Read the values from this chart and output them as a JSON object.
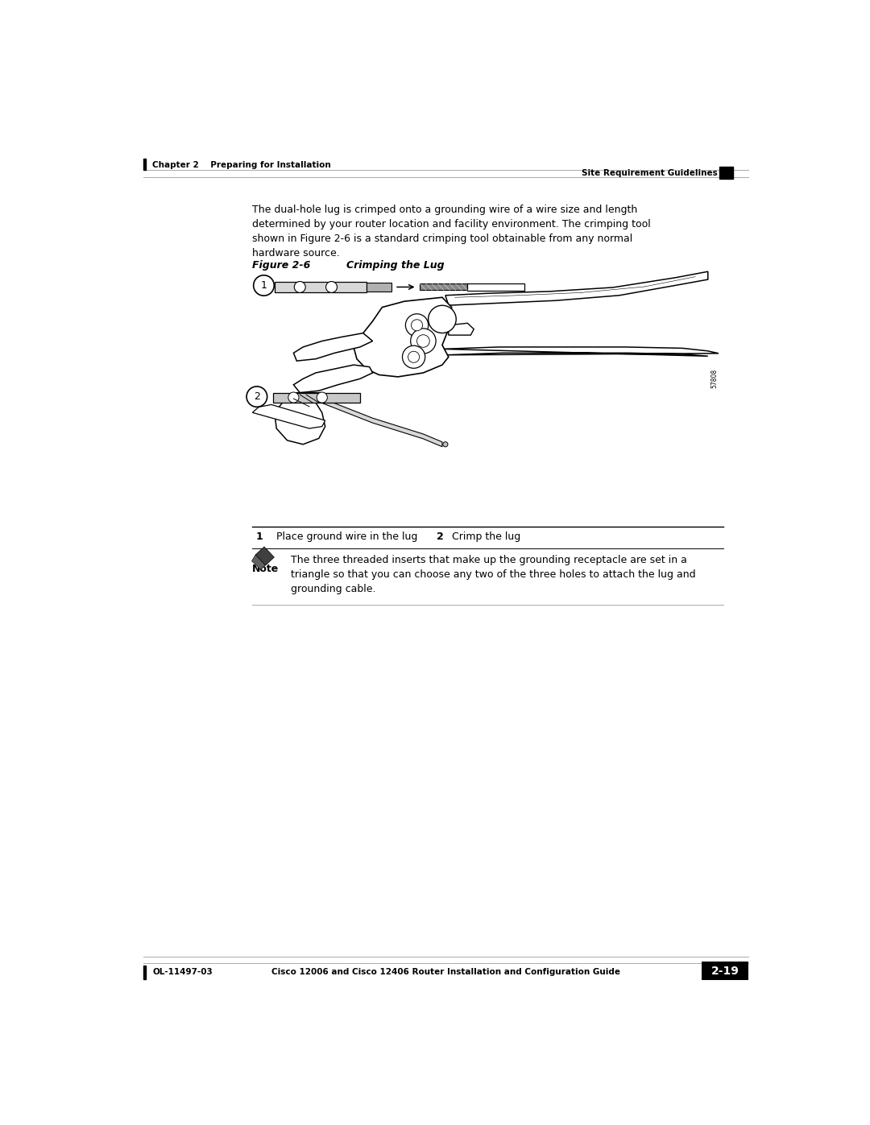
{
  "page_width": 10.8,
  "page_height": 13.97,
  "bg_color": "#ffffff",
  "header_left": "Chapter 2    Preparing for Installation",
  "header_right": "Site Requirement Guidelines",
  "footer_left": "OL-11497-03",
  "footer_center": "Cisco 12006 and Cisco 12406 Router Installation and Configuration Guide",
  "footer_page": "2-19",
  "body_text": "The dual-hole lug is crimped onto a grounding wire of a wire size and length\ndetermined by your router location and facility environment. The crimping tool\nshown in Figure 2-6 is a standard crimping tool obtainable from any normal\nhardware source.",
  "figure_label": "Figure 2-6",
  "figure_title": "     Crimping the Lug",
  "table_row1_num": "1",
  "table_row1_text": "Place ground wire in the lug",
  "table_row1_num2": "2",
  "table_row1_text2": "Crimp the lug",
  "note_label": "Note",
  "note_text": "The three threaded inserts that make up the grounding receptacle are set in a\ntriangle so that you can choose any two of the three holes to attach the lug and\ngrounding cable.",
  "callout_1_label": "1",
  "callout_2_label": "2",
  "header_line_color": "#aaaaaa",
  "table_line_color": "#000000",
  "note_line_color": "#aaaaaa",
  "image_number": "57808"
}
